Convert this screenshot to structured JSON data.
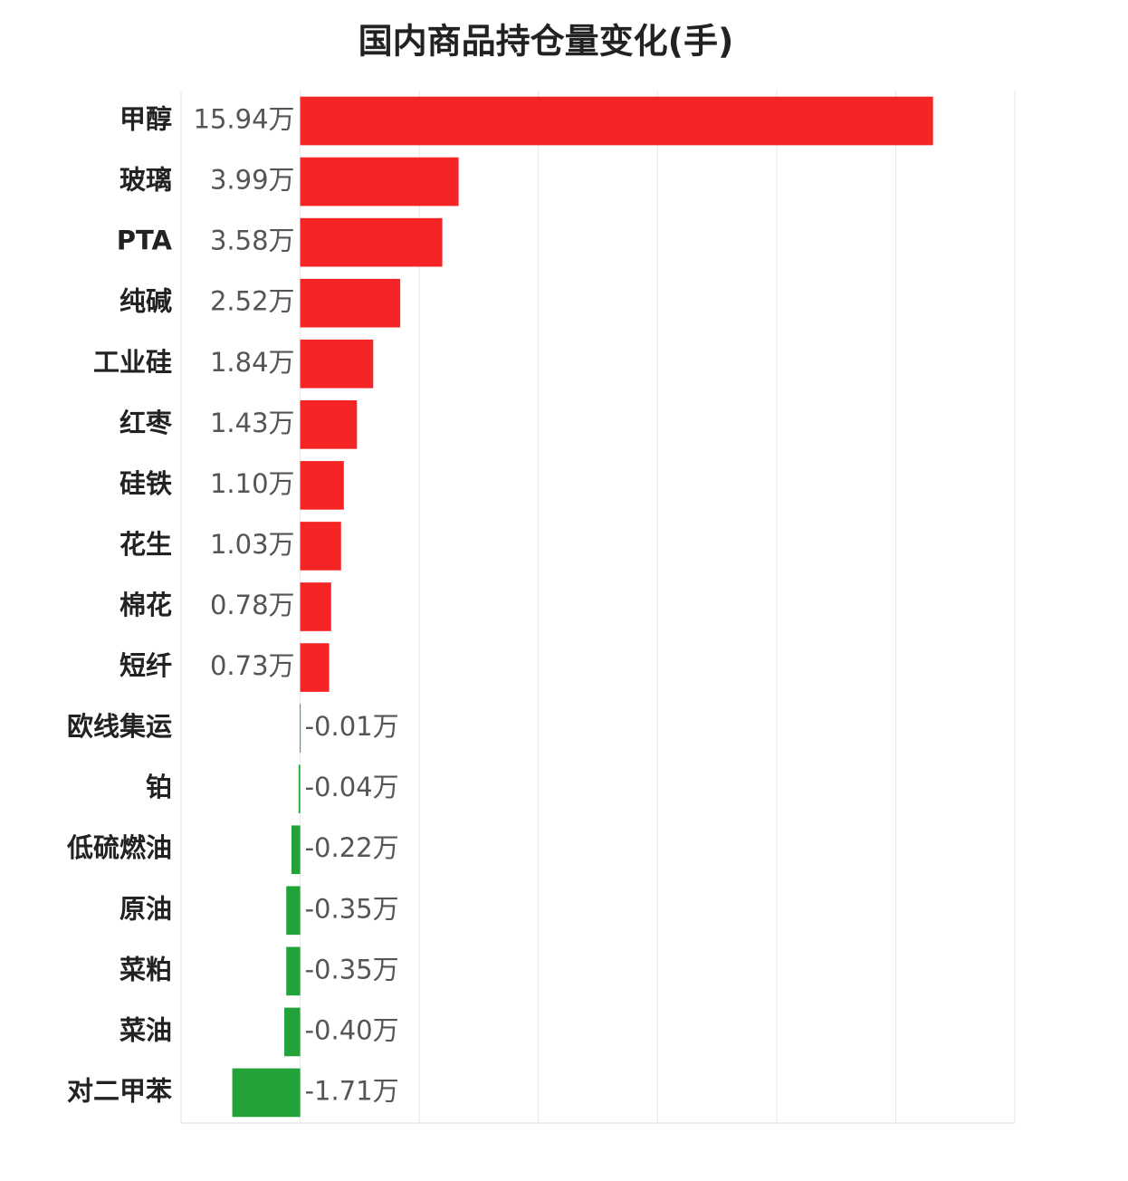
{
  "chart_data": {
    "type": "hbar",
    "title": "国内商品持仓量变化(手)",
    "categories": [
      "甲醇",
      "玻璃",
      "PTA",
      "纯碱",
      "工业硅",
      "红枣",
      "硅铁",
      "花生",
      "棉花",
      "短纤",
      "欧线集运",
      "铂",
      "低硫燃油",
      "原油",
      "菜粕",
      "菜油",
      "对二甲苯"
    ],
    "values": [
      15.94,
      3.99,
      3.58,
      2.52,
      1.84,
      1.43,
      1.1,
      1.03,
      0.78,
      0.73,
      -0.01,
      -0.04,
      -0.22,
      -0.35,
      -0.35,
      -0.4,
      -1.71
    ],
    "value_labels": [
      "15.94万",
      "3.99万",
      "3.58万",
      "2.52万",
      "1.84万",
      "1.43万",
      "1.10万",
      "1.03万",
      "0.78万",
      "0.73万",
      "-0.01万",
      "-0.04万",
      "-0.22万",
      "-0.35万",
      "-0.35万",
      "-0.40万",
      "-1.71万"
    ],
    "color_positive": "#f52525",
    "color_negative": "#21a33a",
    "xlim": [
      -3,
      18
    ],
    "xticks": [
      -3,
      0,
      3,
      6,
      9,
      12,
      15,
      18
    ],
    "grid": true
  }
}
